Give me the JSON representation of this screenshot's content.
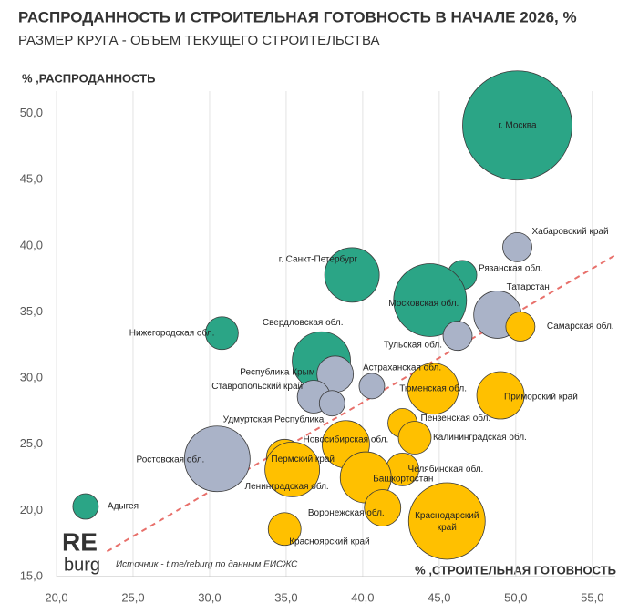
{
  "chart_data": {
    "type": "bubble",
    "title": "РАСПРОДАННОСТЬ И СТРОИТЕЛЬНАЯ ГОТОВНОСТЬ В НАЧАЛЕ 2026, %",
    "subtitle": "РАЗМЕР КРУГА - ОБЪЕМ ТЕКУЩЕГО СТРОИТЕЛЬСТВА",
    "y_label": "% ,РАСПРОДАННОСТЬ",
    "x_label": "% ,СТРОИТЕЛЬНАЯ ГОТОВНОСТЬ",
    "source": "Источник - t.me/reburg по данным ЕИСЖС",
    "logo": [
      "RE",
      "burg"
    ],
    "xlim": [
      20,
      56.5
    ],
    "ylim": [
      15,
      51.7
    ],
    "xticks": [
      {
        "value": 20,
        "label": "20,0"
      },
      {
        "value": 25,
        "label": "25,0"
      },
      {
        "value": 30,
        "label": "30,0"
      },
      {
        "value": 35,
        "label": "35,0"
      },
      {
        "value": 40,
        "label": "40,0"
      },
      {
        "value": 45,
        "label": "45,0"
      },
      {
        "value": 50,
        "label": "50,0"
      },
      {
        "value": 55,
        "label": "55,0"
      }
    ],
    "yticks": [
      {
        "value": 15,
        "label": "15,0"
      },
      {
        "value": 20,
        "label": "20,0"
      },
      {
        "value": 25,
        "label": "25,0"
      },
      {
        "value": 30,
        "label": "30,0"
      },
      {
        "value": 35,
        "label": "35,0"
      },
      {
        "value": 40,
        "label": "40,0"
      },
      {
        "value": 45,
        "label": "45,0"
      },
      {
        "value": 50,
        "label": "50,0"
      }
    ],
    "grid": true,
    "trendline": {
      "color": "#e8706b",
      "x": [
        23.3,
        56.5
      ],
      "y": [
        16.9,
        39.3
      ]
    },
    "points": [
      {
        "label": "г. Москва",
        "x": 50.1,
        "y": 49.1,
        "size": 36,
        "color": "#2ba586"
      },
      {
        "label": "Хабаровский край",
        "x": 50.1,
        "y": 39.9,
        "size": 2.56,
        "color": "#aab3c8"
      },
      {
        "label": "Рязанская обл.",
        "x": 46.5,
        "y": 37.8,
        "size": 2.56,
        "color": "#2ba586"
      },
      {
        "label": "Татарстан",
        "x": 48.8,
        "y": 34.8,
        "size": 6.76,
        "color": "#aab3c8"
      },
      {
        "label": "Самарская обл.",
        "x": 50.3,
        "y": 33.9,
        "size": 2.56,
        "color": "#ffc000"
      },
      {
        "label": "Московская обл.",
        "x": 44.4,
        "y": 35.9,
        "size": 16,
        "color": "#2ba586"
      },
      {
        "label": "Тульская обл.",
        "x": 46.2,
        "y": 33.2,
        "size": 2.56,
        "color": "#aab3c8"
      },
      {
        "label": "г. Санкт-Петербург",
        "x": 39.3,
        "y": 37.8,
        "size": 9,
        "color": "#2ba586"
      },
      {
        "label": "Нижегородская обл.",
        "x": 30.8,
        "y": 33.4,
        "size": 3.24,
        "color": "#2ba586"
      },
      {
        "label": "Свердловская обл.",
        "x": 37.3,
        "y": 31.3,
        "size": 10.24,
        "color": "#2ba586"
      },
      {
        "label": "Республика Крым",
        "x": 38.2,
        "y": 30.3,
        "size": 4,
        "color": "#aab3c8"
      },
      {
        "label": "Ставропольский край",
        "x": 36.8,
        "y": 28.6,
        "size": 3.24,
        "color": "#aab3c8"
      },
      {
        "label": "Удмуртская Республика",
        "x": 38.0,
        "y": 28.1,
        "size": 1.96,
        "color": "#aab3c8"
      },
      {
        "label": "Астраханская обл.",
        "x": 40.6,
        "y": 29.4,
        "size": 1.96,
        "color": "#aab3c8"
      },
      {
        "label": "Тюменская обл.",
        "x": 44.6,
        "y": 29.2,
        "size": 7.84,
        "color": "#ffc000"
      },
      {
        "label": "Приморский край",
        "x": 49.0,
        "y": 28.7,
        "size": 6.76,
        "color": "#ffc000"
      },
      {
        "label": "Пензенская обл.",
        "x": 42.6,
        "y": 26.6,
        "size": 2.56,
        "color": "#ffc000"
      },
      {
        "label": "Калининградская обл.",
        "x": 43.4,
        "y": 25.5,
        "size": 3.24,
        "color": "#ffc000"
      },
      {
        "label": "Новосибирская обл.",
        "x": 38.9,
        "y": 25.0,
        "size": 6.76,
        "color": "#ffc000"
      },
      {
        "label": "Пермский край",
        "x": 34.9,
        "y": 24.0,
        "size": 4,
        "color": "#ffc000"
      },
      {
        "label": "Ленинградская обл.",
        "x": 35.4,
        "y": 23.1,
        "size": 9,
        "color": "#ffc000"
      },
      {
        "label": "Челябинская обл.",
        "x": 42.6,
        "y": 23.1,
        "size": 3.24,
        "color": "#ffc000"
      },
      {
        "label": "Башкортостан",
        "x": 40.2,
        "y": 22.5,
        "size": 7.84,
        "color": "#ffc000"
      },
      {
        "label": "Воронежская обл.",
        "x": 41.3,
        "y": 20.2,
        "size": 4,
        "color": "#ffc000"
      },
      {
        "label": "Краснодарский край",
        "x": 45.5,
        "y": 19.2,
        "size": 17.64,
        "color": "#ffc000"
      },
      {
        "label": "Красноярский край",
        "x": 34.9,
        "y": 18.6,
        "size": 3.24,
        "color": "#ffc000"
      },
      {
        "label": "Ростовская обл.",
        "x": 30.5,
        "y": 23.9,
        "size": 12.96,
        "color": "#aab3c8"
      },
      {
        "label": "Адыгея",
        "x": 21.9,
        "y": 20.3,
        "size": 1.96,
        "color": "#2ba586"
      }
    ]
  }
}
